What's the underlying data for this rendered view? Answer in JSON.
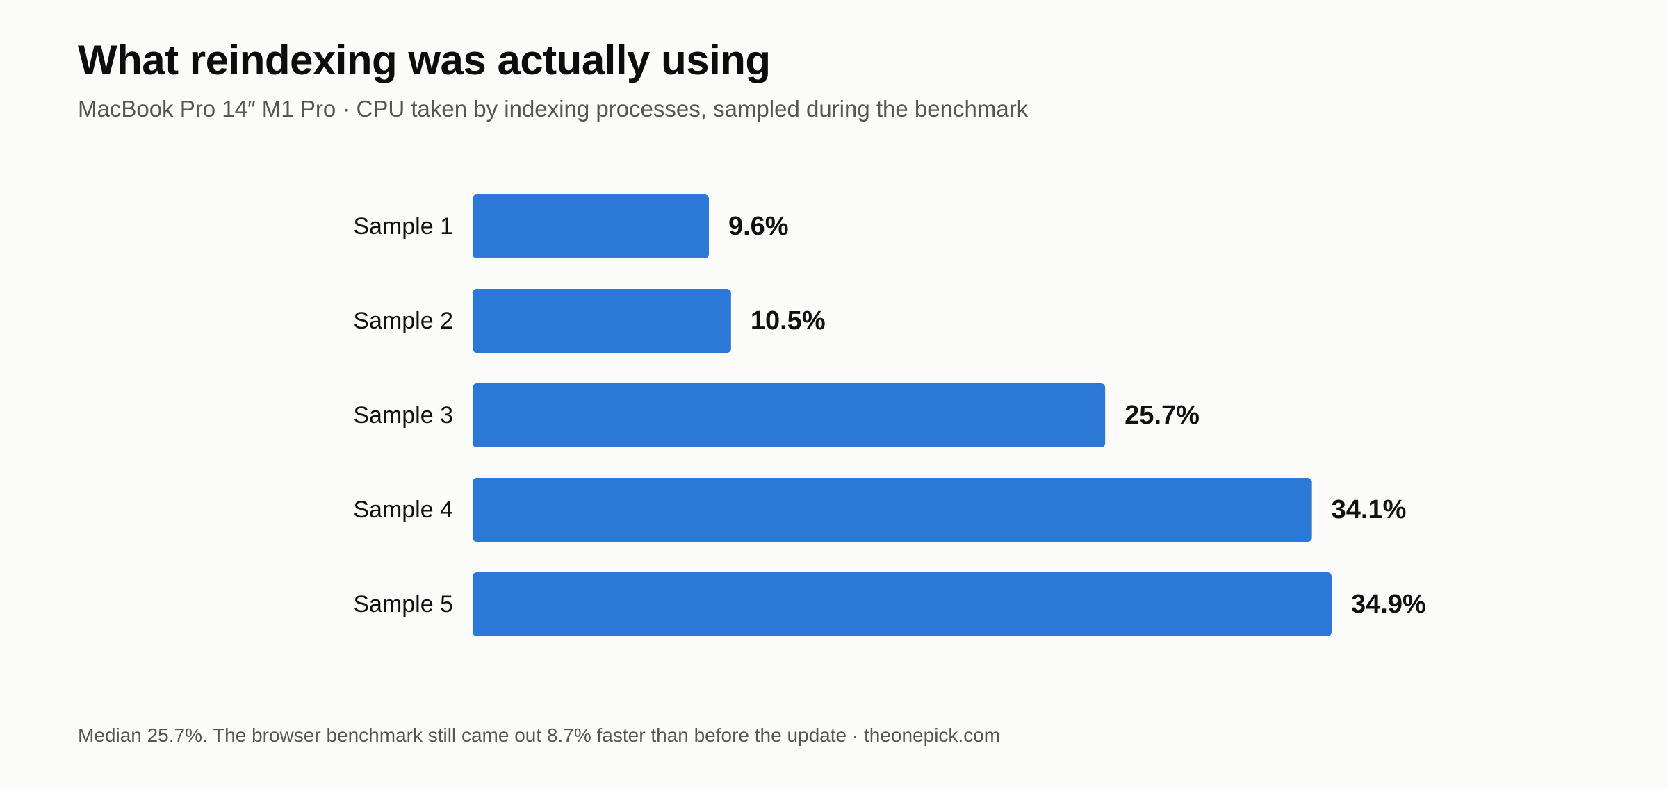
{
  "header": {
    "title": "What reindexing was actually using",
    "subtitle": "MacBook Pro 14″ M1 Pro · CPU taken by indexing processes, sampled during the benchmark"
  },
  "footer": {
    "note": "Median 25.7%. The browser benchmark still came out 8.7% faster than before the update · theonepick.com"
  },
  "chart_data": {
    "type": "bar",
    "orientation": "horizontal",
    "categories": [
      "Sample 1",
      "Sample 2",
      "Sample 3",
      "Sample 4",
      "Sample 5"
    ],
    "values": [
      9.6,
      10.5,
      25.7,
      34.1,
      34.9
    ],
    "value_labels": [
      "9.6%",
      "10.5%",
      "25.7%",
      "34.1%",
      "34.9%"
    ],
    "unit": "%",
    "xlim": [
      0,
      34.9
    ],
    "grid": false,
    "legend": "none",
    "bar_color": "#2b78d6"
  }
}
